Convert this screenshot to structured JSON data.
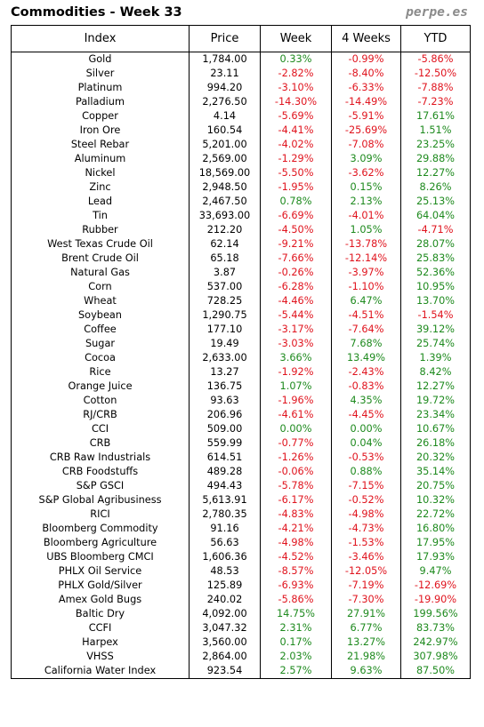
{
  "header": {
    "title": "Commodities - Week 33",
    "brand": "perpe.es"
  },
  "colors": {
    "positive": "#1e8a1e",
    "negative": "#e0141e",
    "brand": "#8a8a8a"
  },
  "table": {
    "columns": [
      "Index",
      "Price",
      "Week",
      "4 Weeks",
      "YTD"
    ],
    "rows": [
      [
        "Gold",
        "1,784.00",
        "0.33%",
        "-0.99%",
        "-5.86%"
      ],
      [
        "Silver",
        "23.11",
        "-2.82%",
        "-8.40%",
        "-12.50%"
      ],
      [
        "Platinum",
        "994.20",
        "-3.10%",
        "-6.33%",
        "-7.88%"
      ],
      [
        "Palladium",
        "2,276.50",
        "-14.30%",
        "-14.49%",
        "-7.23%"
      ],
      [
        "Copper",
        "4.14",
        "-5.69%",
        "-5.91%",
        "17.61%"
      ],
      [
        "Iron Ore",
        "160.54",
        "-4.41%",
        "-25.69%",
        "1.51%"
      ],
      [
        "Steel Rebar",
        "5,201.00",
        "-4.02%",
        "-7.08%",
        "23.25%"
      ],
      [
        "Aluminum",
        "2,569.00",
        "-1.29%",
        "3.09%",
        "29.88%"
      ],
      [
        "Nickel",
        "18,569.00",
        "-5.50%",
        "-3.62%",
        "12.27%"
      ],
      [
        "Zinc",
        "2,948.50",
        "-1.95%",
        "0.15%",
        "8.26%"
      ],
      [
        "Lead",
        "2,467.50",
        "0.78%",
        "2.13%",
        "25.13%"
      ],
      [
        "Tin",
        "33,693.00",
        "-6.69%",
        "-4.01%",
        "64.04%"
      ],
      [
        "Rubber",
        "212.20",
        "-4.50%",
        "1.05%",
        "-4.71%"
      ],
      [
        "West Texas Crude Oil",
        "62.14",
        "-9.21%",
        "-13.78%",
        "28.07%"
      ],
      [
        "Brent Crude Oil",
        "65.18",
        "-7.66%",
        "-12.14%",
        "25.83%"
      ],
      [
        "Natural Gas",
        "3.87",
        "-0.26%",
        "-3.97%",
        "52.36%"
      ],
      [
        "Corn",
        "537.00",
        "-6.28%",
        "-1.10%",
        "10.95%"
      ],
      [
        "Wheat",
        "728.25",
        "-4.46%",
        "6.47%",
        "13.70%"
      ],
      [
        "Soybean",
        "1,290.75",
        "-5.44%",
        "-4.51%",
        "-1.54%"
      ],
      [
        "Coffee",
        "177.10",
        "-3.17%",
        "-7.64%",
        "39.12%"
      ],
      [
        "Sugar",
        "19.49",
        "-3.03%",
        "7.68%",
        "25.74%"
      ],
      [
        "Cocoa",
        "2,633.00",
        "3.66%",
        "13.49%",
        "1.39%"
      ],
      [
        "Rice",
        "13.27",
        "-1.92%",
        "-2.43%",
        "8.42%"
      ],
      [
        "Orange Juice",
        "136.75",
        "1.07%",
        "-0.83%",
        "12.27%"
      ],
      [
        "Cotton",
        "93.63",
        "-1.96%",
        "4.35%",
        "19.72%"
      ],
      [
        "RJ/CRB",
        "206.96",
        "-4.61%",
        "-4.45%",
        "23.34%"
      ],
      [
        "CCI",
        "509.00",
        "0.00%",
        "0.00%",
        "10.67%"
      ],
      [
        "CRB",
        "559.99",
        "-0.77%",
        "0.04%",
        "26.18%"
      ],
      [
        "CRB Raw Industrials",
        "614.51",
        "-1.26%",
        "-0.53%",
        "20.32%"
      ],
      [
        "CRB Foodstuffs",
        "489.28",
        "-0.06%",
        "0.88%",
        "35.14%"
      ],
      [
        "S&P GSCI",
        "494.43",
        "-5.78%",
        "-7.15%",
        "20.75%"
      ],
      [
        "S&P Global Agribusiness",
        "5,613.91",
        "-6.17%",
        "-0.52%",
        "10.32%"
      ],
      [
        "RICI",
        "2,780.35",
        "-4.83%",
        "-4.98%",
        "22.72%"
      ],
      [
        "Bloomberg Commodity",
        "91.16",
        "-4.21%",
        "-4.73%",
        "16.80%"
      ],
      [
        "Bloomberg Agriculture",
        "56.63",
        "-4.98%",
        "-1.53%",
        "17.95%"
      ],
      [
        "UBS Bloomberg CMCI",
        "1,606.36",
        "-4.52%",
        "-3.46%",
        "17.93%"
      ],
      [
        "PHLX Oil Service",
        "48.53",
        "-8.57%",
        "-12.05%",
        "9.47%"
      ],
      [
        "PHLX Gold/Silver",
        "125.89",
        "-6.93%",
        "-7.19%",
        "-12.69%"
      ],
      [
        "Amex Gold Bugs",
        "240.02",
        "-5.86%",
        "-7.30%",
        "-19.90%"
      ],
      [
        "Baltic Dry",
        "4,092.00",
        "14.75%",
        "27.91%",
        "199.56%"
      ],
      [
        "CCFI",
        "3,047.32",
        "2.31%",
        "6.77%",
        "83.73%"
      ],
      [
        "Harpex",
        "3,560.00",
        "0.17%",
        "13.27%",
        "242.97%"
      ],
      [
        "VHSS",
        "2,864.00",
        "2.03%",
        "21.98%",
        "307.98%"
      ],
      [
        "California Water Index",
        "923.54",
        "2.57%",
        "9.63%",
        "87.50%"
      ]
    ]
  }
}
